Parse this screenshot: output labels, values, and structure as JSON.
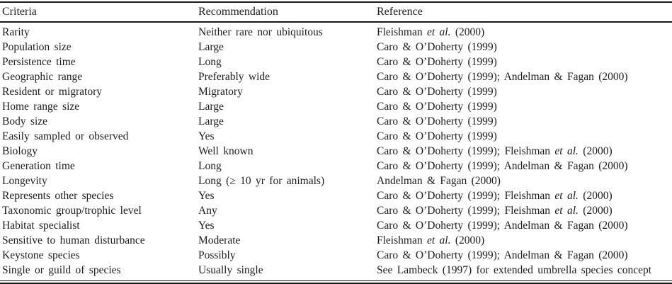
{
  "table": {
    "columns": [
      "Criteria",
      "Recommendation",
      "Reference"
    ],
    "rows": [
      {
        "criteria": "Rarity",
        "recommendation": "Neither rare nor ubiquitous",
        "reference": "Fleishman et al. (2000)"
      },
      {
        "criteria": "Population size",
        "recommendation": "Large",
        "reference": "Caro & O’Doherty (1999)"
      },
      {
        "criteria": "Persistence time",
        "recommendation": "Long",
        "reference": "Caro & O’Doherty (1999)"
      },
      {
        "criteria": "Geographic range",
        "recommendation": "Preferably wide",
        "reference": "Caro & O’Doherty (1999); Andelman & Fagan (2000)"
      },
      {
        "criteria": "Resident or migratory",
        "recommendation": "Migratory",
        "reference": "Caro & O’Doherty (1999)"
      },
      {
        "criteria": "Home range size",
        "recommendation": "Large",
        "reference": "Caro & O’Doherty (1999)"
      },
      {
        "criteria": "Body size",
        "recommendation": "Large",
        "reference": "Caro & O’Doherty (1999)"
      },
      {
        "criteria": "Easily sampled or observed",
        "recommendation": "Yes",
        "reference": "Caro & O’Doherty (1999)"
      },
      {
        "criteria": "Biology",
        "recommendation": "Well known",
        "reference": "Caro & O’Doherty (1999); Fleishman et al. (2000)"
      },
      {
        "criteria": "Generation time",
        "recommendation": "Long",
        "reference": "Caro & O’Doherty (1999); Andelman & Fagan (2000)"
      },
      {
        "criteria": "Longevity",
        "recommendation": "Long (≥ 10 yr for animals)",
        "reference": "Andelman & Fagan (2000)"
      },
      {
        "criteria": "Represents other species",
        "recommendation": "Yes",
        "reference": "Caro & O’Doherty (1999); Fleishman et al. (2000)"
      },
      {
        "criteria": "Taxonomic group/trophic level",
        "recommendation": "Any",
        "reference": "Caro & O’Doherty (1999); Fleishman et al. (2000)"
      },
      {
        "criteria": "Habitat specialist",
        "recommendation": "Yes",
        "reference": "Caro & O’Doherty (1999); Andelman & Fagan (2000)"
      },
      {
        "criteria": "Sensitive to human disturbance",
        "recommendation": "Moderate",
        "reference": "Fleishman et al. (2000)"
      },
      {
        "criteria": "Keystone species",
        "recommendation": "Possibly",
        "reference": "Caro & O’Doherty (1999); Andelman & Fagan (2000)"
      },
      {
        "criteria": "Single or guild of species",
        "recommendation": "Usually single",
        "reference": "See Lambeck (1997) for extended umbrella species concept"
      }
    ]
  }
}
